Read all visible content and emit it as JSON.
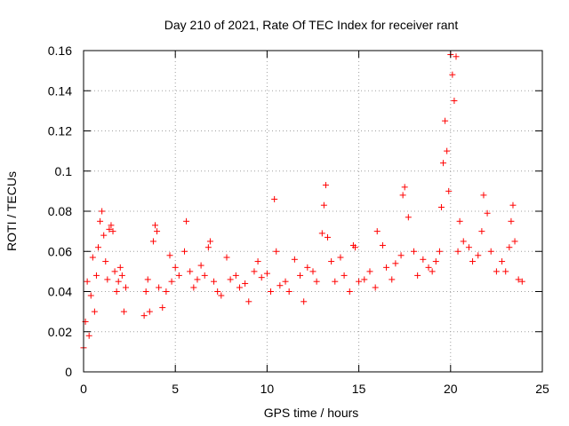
{
  "chart_data": {
    "type": "scatter",
    "title": "Day 210 of 2021, Rate Of TEC Index for receiver rant",
    "xlabel": "GPS time / hours",
    "ylabel": "ROTI / TECUs",
    "xlim": [
      0,
      25
    ],
    "ylim": [
      0,
      0.16
    ],
    "x_ticks": [
      0,
      5,
      10,
      15,
      20,
      25
    ],
    "y_ticks": [
      0,
      0.02,
      0.04,
      0.06,
      0.08,
      0.1,
      0.12,
      0.14,
      0.16
    ],
    "x_tick_labels": [
      "0",
      "5",
      "10",
      "15",
      "20",
      "25"
    ],
    "y_tick_labels": [
      "0",
      "0.02",
      "0.04",
      "0.06",
      "0.08",
      "0.1",
      "0.12",
      "0.14",
      "0.16"
    ],
    "grid": true,
    "marker": "+",
    "color": "#ff0000",
    "series": [
      {
        "points": [
          [
            0.0,
            0.012
          ],
          [
            0.1,
            0.025
          ],
          [
            0.2,
            0.045
          ],
          [
            0.3,
            0.018
          ],
          [
            0.4,
            0.038
          ],
          [
            0.5,
            0.057
          ],
          [
            0.6,
            0.03
          ],
          [
            0.7,
            0.048
          ],
          [
            0.8,
            0.062
          ],
          [
            0.9,
            0.075
          ],
          [
            1.0,
            0.08
          ],
          [
            1.1,
            0.068
          ],
          [
            1.2,
            0.055
          ],
          [
            1.3,
            0.046
          ],
          [
            1.4,
            0.071
          ],
          [
            1.5,
            0.073
          ],
          [
            1.6,
            0.07
          ],
          [
            1.7,
            0.05
          ],
          [
            1.8,
            0.04
          ],
          [
            1.9,
            0.045
          ],
          [
            2.0,
            0.052
          ],
          [
            2.1,
            0.048
          ],
          [
            2.2,
            0.03
          ],
          [
            2.3,
            0.042
          ],
          [
            3.3,
            0.028
          ],
          [
            3.4,
            0.04
          ],
          [
            3.5,
            0.046
          ],
          [
            3.6,
            0.03
          ],
          [
            3.8,
            0.065
          ],
          [
            3.9,
            0.073
          ],
          [
            4.0,
            0.07
          ],
          [
            4.1,
            0.042
          ],
          [
            4.3,
            0.032
          ],
          [
            4.5,
            0.04
          ],
          [
            4.7,
            0.058
          ],
          [
            4.8,
            0.045
          ],
          [
            5.0,
            0.052
          ],
          [
            5.2,
            0.048
          ],
          [
            5.5,
            0.06
          ],
          [
            5.6,
            0.075
          ],
          [
            5.8,
            0.05
          ],
          [
            6.0,
            0.042
          ],
          [
            6.2,
            0.046
          ],
          [
            6.4,
            0.053
          ],
          [
            6.6,
            0.048
          ],
          [
            6.8,
            0.062
          ],
          [
            6.9,
            0.065
          ],
          [
            7.1,
            0.045
          ],
          [
            7.3,
            0.04
          ],
          [
            7.5,
            0.038
          ],
          [
            7.8,
            0.057
          ],
          [
            8.0,
            0.046
          ],
          [
            8.3,
            0.048
          ],
          [
            8.5,
            0.042
          ],
          [
            8.8,
            0.044
          ],
          [
            9.0,
            0.035
          ],
          [
            9.3,
            0.05
          ],
          [
            9.5,
            0.055
          ],
          [
            9.7,
            0.047
          ],
          [
            10.0,
            0.049
          ],
          [
            10.2,
            0.04
          ],
          [
            10.4,
            0.086
          ],
          [
            10.5,
            0.06
          ],
          [
            10.7,
            0.043
          ],
          [
            11.0,
            0.045
          ],
          [
            11.2,
            0.04
          ],
          [
            11.5,
            0.056
          ],
          [
            11.8,
            0.048
          ],
          [
            12.0,
            0.035
          ],
          [
            12.2,
            0.052
          ],
          [
            12.5,
            0.05
          ],
          [
            12.7,
            0.045
          ],
          [
            13.0,
            0.069
          ],
          [
            13.1,
            0.083
          ],
          [
            13.2,
            0.093
          ],
          [
            13.3,
            0.067
          ],
          [
            13.5,
            0.055
          ],
          [
            13.7,
            0.045
          ],
          [
            14.0,
            0.057
          ],
          [
            14.2,
            0.048
          ],
          [
            14.5,
            0.04
          ],
          [
            14.7,
            0.063
          ],
          [
            14.8,
            0.062
          ],
          [
            15.0,
            0.045
          ],
          [
            15.3,
            0.046
          ],
          [
            15.6,
            0.05
          ],
          [
            15.9,
            0.042
          ],
          [
            16.0,
            0.07
          ],
          [
            16.3,
            0.063
          ],
          [
            16.5,
            0.052
          ],
          [
            16.8,
            0.046
          ],
          [
            17.0,
            0.054
          ],
          [
            17.3,
            0.058
          ],
          [
            17.4,
            0.088
          ],
          [
            17.5,
            0.092
          ],
          [
            17.7,
            0.077
          ],
          [
            18.0,
            0.06
          ],
          [
            18.2,
            0.048
          ],
          [
            18.5,
            0.056
          ],
          [
            18.8,
            0.052
          ],
          [
            19.0,
            0.05
          ],
          [
            19.2,
            0.055
          ],
          [
            19.4,
            0.06
          ],
          [
            19.5,
            0.082
          ],
          [
            19.6,
            0.104
          ],
          [
            19.7,
            0.125
          ],
          [
            19.8,
            0.11
          ],
          [
            19.9,
            0.09
          ],
          [
            20.0,
            0.158
          ],
          [
            20.1,
            0.148
          ],
          [
            20.2,
            0.135
          ],
          [
            20.3,
            0.157
          ],
          [
            20.4,
            0.06
          ],
          [
            20.5,
            0.075
          ],
          [
            20.7,
            0.065
          ],
          [
            21.0,
            0.062
          ],
          [
            21.2,
            0.055
          ],
          [
            21.5,
            0.058
          ],
          [
            21.7,
            0.07
          ],
          [
            21.8,
            0.088
          ],
          [
            22.0,
            0.079
          ],
          [
            22.2,
            0.06
          ],
          [
            22.5,
            0.05
          ],
          [
            22.8,
            0.055
          ],
          [
            23.0,
            0.05
          ],
          [
            23.2,
            0.062
          ],
          [
            23.3,
            0.075
          ],
          [
            23.4,
            0.083
          ],
          [
            23.5,
            0.065
          ],
          [
            23.7,
            0.046
          ],
          [
            23.9,
            0.045
          ]
        ]
      }
    ]
  }
}
